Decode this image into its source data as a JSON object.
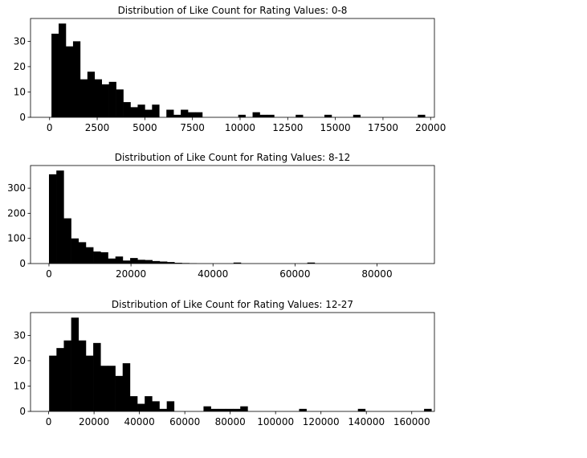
{
  "chart_data": [
    {
      "type": "bar",
      "title": "Distribution of Like Count for Rating Values: 0-8",
      "xlabel": "",
      "ylabel": "",
      "xlim": [
        -1000,
        20200
      ],
      "ylim": [
        0,
        39
      ],
      "xticks": [
        0,
        2500,
        5000,
        7500,
        10000,
        12500,
        15000,
        17500,
        20000
      ],
      "xtick_labels": [
        "0",
        "2500",
        "5000",
        "7500",
        "10000",
        "12500",
        "15000",
        "17500",
        "20000"
      ],
      "yticks": [
        0,
        10,
        20,
        30
      ],
      "ytick_labels": [
        "0",
        "10",
        "20",
        "30"
      ],
      "bin_start": 100,
      "bin_width": 377,
      "values": [
        33,
        37,
        28,
        30,
        15,
        18,
        15,
        13,
        14,
        11,
        6,
        4,
        5,
        3,
        5,
        0,
        3,
        1,
        3,
        2,
        2,
        0,
        0,
        0,
        0,
        0,
        1,
        0,
        2,
        1,
        1,
        0,
        0,
        0,
        1,
        0,
        0,
        0,
        1,
        0,
        0,
        0,
        1,
        0,
        0,
        0,
        0,
        0,
        0,
        0,
        0,
        1
      ]
    },
    {
      "type": "bar",
      "title": "Distribution of Like Count for Rating Values: 8-12",
      "xlabel": "",
      "ylabel": "",
      "xlim": [
        -4500,
        94000
      ],
      "ylim": [
        0,
        390
      ],
      "xticks": [
        0,
        20000,
        40000,
        60000,
        80000
      ],
      "xtick_labels": [
        "0",
        "20000",
        "40000",
        "60000",
        "80000"
      ],
      "yticks": [
        0,
        100,
        200,
        300
      ],
      "ytick_labels": [
        "0",
        "100",
        "200",
        "300"
      ],
      "bin_start": 0,
      "bin_width": 1800,
      "values": [
        355,
        370,
        180,
        100,
        85,
        65,
        48,
        45,
        20,
        28,
        12,
        22,
        15,
        14,
        10,
        8,
        6,
        3,
        2,
        1,
        0,
        0,
        0,
        0,
        0,
        4,
        0,
        0,
        0,
        0,
        0,
        0,
        0,
        0,
        0,
        4,
        0,
        0,
        0,
        0,
        0,
        0,
        0,
        0,
        0,
        0,
        0,
        0,
        0,
        0
      ]
    },
    {
      "type": "bar",
      "title": "Distribution of Like Count for Rating Values: 12-27",
      "xlabel": "",
      "ylabel": "",
      "xlim": [
        -8000,
        170000
      ],
      "ylim": [
        0,
        39
      ],
      "xticks": [
        0,
        20000,
        40000,
        60000,
        80000,
        100000,
        120000,
        140000,
        160000
      ],
      "xtick_labels": [
        "0",
        "20000",
        "40000",
        "60000",
        "80000",
        "100000",
        "120000",
        "140000",
        "160000"
      ],
      "yticks": [
        0,
        10,
        20,
        30
      ],
      "ytick_labels": [
        "0",
        "10",
        "20",
        "30"
      ],
      "bin_start": 200,
      "bin_width": 3240,
      "values": [
        22,
        25,
        28,
        37,
        28,
        22,
        27,
        18,
        18,
        14,
        19,
        6,
        3,
        6,
        4,
        1,
        4,
        0,
        0,
        0,
        0,
        2,
        1,
        1,
        1,
        1,
        2,
        0,
        0,
        0,
        0,
        0,
        0,
        0,
        1,
        0,
        0,
        0,
        0,
        0,
        0,
        0,
        1,
        0,
        0,
        0,
        0,
        0,
        0,
        0,
        0,
        1
      ]
    }
  ]
}
